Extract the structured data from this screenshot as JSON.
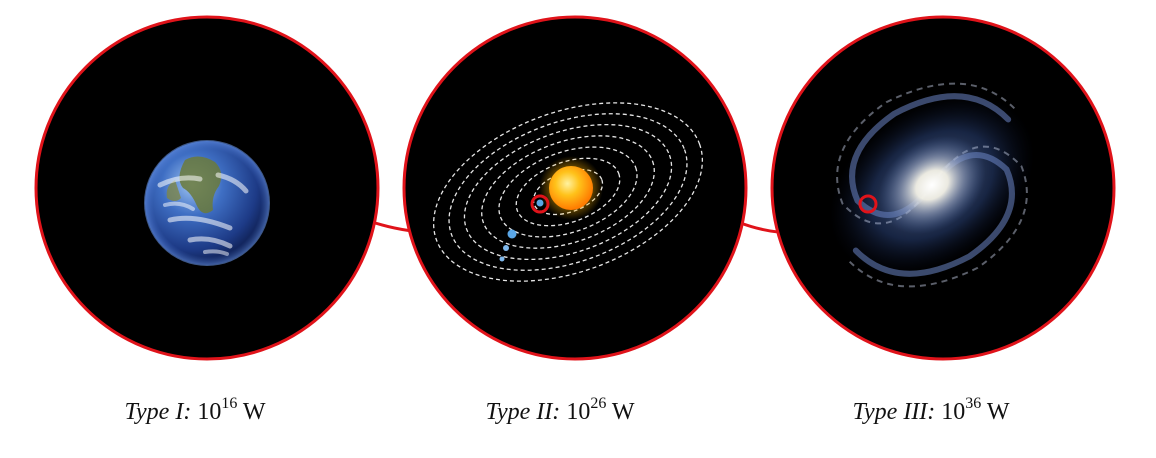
{
  "colors": {
    "ring": "#e0131a",
    "background": "#000000",
    "orbit": "#ffffff",
    "sun": "#ffb400",
    "planet": "#5aa6e6",
    "galaxy_core": "#ffffff",
    "galaxy_arm": "#3b5c9e"
  },
  "panels": [
    {
      "id": "type-1",
      "subject": "earth-icon",
      "caption": {
        "label": "Type I:",
        "base": "10",
        "exponent": "16",
        "unit": "W"
      }
    },
    {
      "id": "type-2",
      "subject": "solar-system-icon",
      "caption": {
        "label": "Type II:",
        "base": "10",
        "exponent": "26",
        "unit": "W"
      }
    },
    {
      "id": "type-3",
      "subject": "galaxy-icon",
      "caption": {
        "label": "Type III:",
        "base": "10",
        "exponent": "36",
        "unit": "W"
      }
    }
  ]
}
